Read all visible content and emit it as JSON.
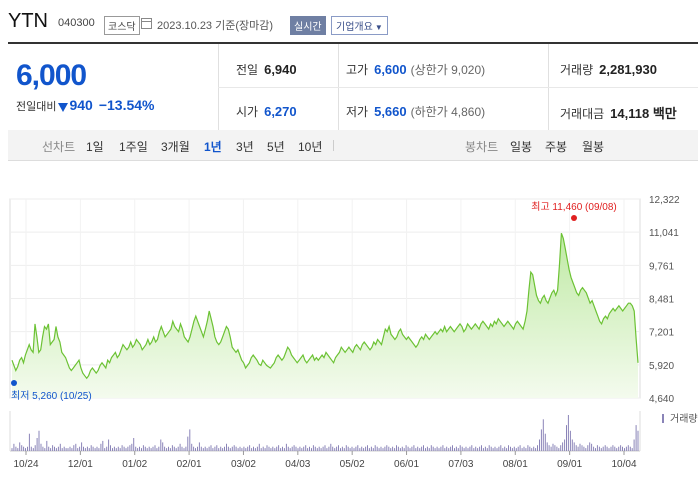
{
  "header": {
    "title": "YTN",
    "code": "040300",
    "market_badge": "코스닥",
    "date": "2023.10.23 기준(장마감)",
    "realtime_badge": "실시간",
    "company_button": "기업개요"
  },
  "quote": {
    "price": "6,000",
    "change_label": "전일대비",
    "change_value": "940",
    "change_pct": "−13.54%",
    "prev_close_label": "전일",
    "prev_close": "6,940",
    "open_label": "시가",
    "open": "6,270",
    "high_label": "고가",
    "high": "6,600",
    "upper_limit": "(상한가 9,020)",
    "low_label": "저가",
    "low": "5,660",
    "lower_limit": "(하한가 4,860)",
    "volume_label": "거래량",
    "volume": "2,281,930",
    "amount_label": "거래대금",
    "amount": "14,118 백만"
  },
  "periods": {
    "line_label": "선차트",
    "items": [
      "1일",
      "1주일",
      "3개월",
      "1년",
      "3년",
      "5년",
      "10년"
    ],
    "active": "1년",
    "candle_label": "봉차트",
    "candle_items": [
      "일봉",
      "주봉",
      "월봉"
    ]
  },
  "chart_data": {
    "type": "area",
    "y_ticks": [
      "12,322",
      "11,041",
      "9,761",
      "8,481",
      "7,201",
      "5,920",
      "4,640"
    ],
    "ylim": [
      4640,
      12322
    ],
    "x_ticks": [
      "10/24",
      "12/01",
      "01/02",
      "02/01",
      "03/02",
      "04/03",
      "05/02",
      "06/01",
      "07/03",
      "08/01",
      "09/01",
      "10/04"
    ],
    "max_annotation": "최고 11,460 (09/08)",
    "min_annotation": "최저 5,260 (10/25)",
    "volume_label": "거래량",
    "colors": {
      "line": "#6cc234",
      "fill": "#e6f7d9",
      "max": "#e02020",
      "min": "#1155cc",
      "volume": "#8a84b8"
    },
    "series": [
      6100,
      5900,
      5700,
      5850,
      6100,
      6200,
      6000,
      6300,
      6500,
      6700,
      6500,
      6400,
      7500,
      7000,
      6400,
      6500,
      7000,
      7400,
      7300,
      7500,
      6700,
      6800,
      6900,
      7400,
      7000,
      6800,
      6400,
      6300,
      6200,
      6000,
      5800,
      5700,
      5800,
      5900,
      6000,
      6100,
      5800,
      5600,
      5500,
      5400,
      5500,
      5700,
      5800,
      5700,
      5600,
      5700,
      5900,
      6000,
      5900,
      5800,
      6100,
      6000,
      6200,
      6300,
      6400,
      6200,
      6300,
      6500,
      6700,
      6600,
      6500,
      6600,
      6800,
      6600,
      6700,
      6900,
      6800,
      6700,
      6500,
      6600,
      6700,
      6900,
      6700,
      6800,
      7000,
      6800,
      6900,
      7200,
      7400,
      7200,
      7000,
      7100,
      7200,
      7300,
      7600,
      7400,
      7300,
      7200,
      7500,
      7300,
      7000,
      6900,
      6800,
      7000,
      7300,
      7600,
      7800,
      7600,
      7400,
      7200,
      7000,
      7300,
      7600,
      8000,
      7700,
      7400,
      7000,
      6800,
      6700,
      6800,
      7000,
      7200,
      7400,
      7300,
      7000,
      6600,
      6500,
      6400,
      6500,
      6300,
      6100,
      6000,
      5800,
      5900,
      6000,
      6200,
      6300,
      6200,
      6100,
      5950,
      5900,
      6100,
      6000,
      5900,
      5850,
      5800,
      5900,
      6000,
      6200,
      6300,
      6200,
      6100,
      6200,
      6400,
      6600,
      6500,
      6300,
      6200,
      6100,
      6000,
      6100,
      6200,
      6300,
      6100,
      6000,
      6100,
      6200,
      6300,
      6100,
      6200,
      6100,
      6200,
      6300,
      6200,
      6400,
      6300,
      6200,
      6100,
      6000,
      6200,
      6300,
      6400,
      6600,
      6500,
      6400,
      6500,
      6600,
      6500,
      6400,
      6600,
      6700,
      6600,
      6500,
      6700,
      6800,
      6700,
      6600,
      6500,
      6600,
      6800,
      6700,
      6900,
      6800,
      6700,
      7000,
      7300,
      7200,
      7400,
      7100,
      7000,
      6900,
      7000,
      7200,
      7300,
      7100,
      7000,
      6900,
      7000,
      6900,
      6800,
      6700,
      6600,
      6700,
      6900,
      7000,
      6900,
      7100,
      7000,
      6900,
      7000,
      7100,
      7200,
      7100,
      7200,
      7300,
      7200,
      7400,
      7200,
      7300,
      7400,
      7300,
      7200,
      7300,
      7400,
      7500,
      7400,
      7200,
      7300,
      7500,
      7400,
      7300,
      7400,
      7500,
      7400,
      7300,
      7500,
      7600,
      7500,
      7400,
      7300,
      7500,
      7400,
      7600,
      7500,
      7700,
      7600,
      7500,
      7400,
      7500,
      7600,
      7500,
      7400,
      7300,
      7500,
      7600,
      7500,
      7400,
      7300,
      7600,
      8000,
      8800,
      9500,
      9400,
      9000,
      8600,
      8400,
      8300,
      8500,
      8600,
      8400,
      8300,
      8500,
      8700,
      8800,
      8600,
      8800,
      9800,
      11000,
      10800,
      10400,
      10000,
      9600,
      9300,
      9100,
      8900,
      8700,
      8600,
      8800,
      8900,
      8800,
      8700,
      8500,
      8300,
      8400,
      8200,
      8000,
      7800,
      7600,
      7500,
      7700,
      7800,
      7700,
      7900,
      8000,
      8100,
      8000,
      8100,
      8200,
      8100,
      8000,
      8100,
      8200,
      8300,
      8300,
      8200,
      8000,
      6940,
      6000
    ],
    "volume": [
      2,
      5,
      3,
      2,
      6,
      4,
      3,
      2,
      3,
      12,
      3,
      2,
      4,
      9,
      14,
      5,
      3,
      2,
      7,
      3,
      2,
      4,
      3,
      2,
      3,
      5,
      2,
      3,
      2,
      2,
      3,
      2,
      4,
      5,
      2,
      3,
      6,
      3,
      2,
      3,
      2,
      4,
      3,
      2,
      3,
      2,
      5,
      7,
      2,
      3,
      8,
      4,
      2,
      3,
      2,
      3,
      2,
      4,
      3,
      2,
      3,
      4,
      5,
      9,
      3,
      2,
      3,
      2,
      4,
      3,
      2,
      3,
      2,
      3,
      4,
      2,
      3,
      8,
      6,
      3,
      2,
      3,
      2,
      4,
      3,
      2,
      3,
      5,
      3,
      2,
      3,
      10,
      15,
      5,
      3,
      2,
      3,
      6,
      3,
      2,
      3,
      2,
      3,
      4,
      2,
      3,
      4,
      2,
      3,
      2,
      3,
      5,
      3,
      2,
      3,
      4,
      3,
      2,
      3,
      2,
      3,
      2,
      3,
      4,
      2,
      3,
      2,
      3,
      5,
      2,
      3,
      2,
      4,
      3,
      2,
      3,
      2,
      3,
      4,
      2,
      3,
      2,
      5,
      3,
      2,
      3,
      4,
      3,
      2,
      3,
      2,
      3,
      4,
      2,
      3,
      2,
      4,
      3,
      2,
      3,
      2,
      3,
      4,
      2,
      3,
      5,
      3,
      2,
      3,
      4,
      2,
      3,
      2,
      4,
      3,
      2,
      3,
      2,
      3,
      4,
      2,
      3,
      2,
      3,
      4,
      2,
      3,
      2,
      4,
      3,
      2,
      3,
      2,
      3,
      4,
      3,
      2,
      3,
      2,
      4,
      3,
      2,
      3,
      2,
      4,
      3,
      2,
      3,
      4,
      2,
      3,
      2,
      3,
      4,
      2,
      3,
      2,
      4,
      3,
      2,
      3,
      2,
      3,
      4,
      2,
      3,
      2,
      3,
      4,
      2,
      3,
      2,
      4,
      3,
      2,
      3,
      2,
      3,
      4,
      2,
      3,
      2,
      3,
      4,
      2,
      3,
      2,
      4,
      3,
      2,
      3,
      2,
      3,
      4,
      2,
      3,
      2,
      4,
      3,
      2,
      3,
      2,
      3,
      4,
      2,
      3,
      2,
      4,
      3,
      2,
      3,
      2,
      4,
      8,
      15,
      22,
      12,
      6,
      4,
      3,
      5,
      4,
      3,
      2,
      4,
      6,
      8,
      18,
      25,
      14,
      8,
      6,
      4,
      3,
      5,
      4,
      3,
      2,
      4,
      6,
      5,
      3,
      2,
      4,
      3,
      2,
      3,
      4,
      3,
      2,
      3,
      4,
      3,
      2,
      3,
      4,
      3,
      2,
      3,
      4,
      3,
      2,
      8,
      18,
      14
    ]
  }
}
